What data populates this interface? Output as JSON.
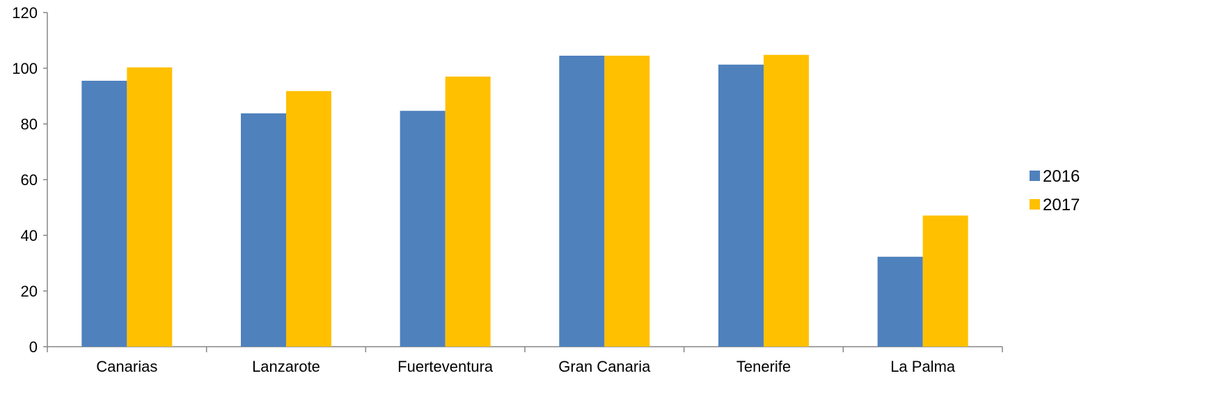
{
  "chart_data": {
    "type": "bar",
    "categories": [
      "Canarias",
      "Lanzarote",
      "Fuerteventura",
      "Gran Canaria",
      "Tenerife",
      "La Palma"
    ],
    "series": [
      {
        "name": "2016",
        "values": [
          95.5,
          83.8,
          84.7,
          104.5,
          101.3,
          32.3
        ],
        "color": "#4F81BD"
      },
      {
        "name": "2017",
        "values": [
          100.3,
          91.8,
          97.0,
          104.5,
          104.8,
          47.1
        ],
        "color": "#FFC000"
      }
    ],
    "title": "",
    "xlabel": "",
    "ylabel": "",
    "ylim": [
      0,
      120
    ],
    "yticks": [
      0,
      20,
      40,
      60,
      80,
      100,
      120
    ],
    "grid": false,
    "legend": "right"
  }
}
